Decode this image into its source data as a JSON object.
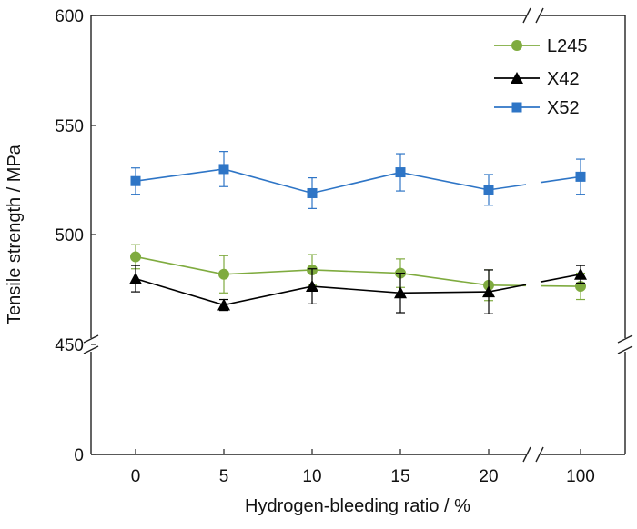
{
  "chart_data": {
    "type": "line",
    "xlabel": "Hydrogen-bleeding ratio / %",
    "ylabel": "Tensile strength / MPa",
    "categories": [
      "0",
      "5",
      "10",
      "15",
      "20",
      "100"
    ],
    "y_ticks": [
      "0",
      "450",
      "500",
      "550",
      "600"
    ],
    "y_axis_break": [
      0,
      450
    ],
    "x_axis_break": [
      20,
      100
    ],
    "ylim": [
      450,
      600
    ],
    "grid": false,
    "legend_position": "top-right",
    "series": [
      {
        "name": "L245",
        "color": "#7fab3f",
        "marker": "circle",
        "values": [
          490,
          482,
          484,
          482.5,
          477,
          476.5
        ],
        "errors": [
          5.5,
          8.5,
          7.0,
          6.5,
          7.0,
          6.0
        ]
      },
      {
        "name": "X42",
        "color": "#000000",
        "marker": "triangle",
        "values": [
          480,
          468,
          476.5,
          473.5,
          474,
          482
        ],
        "errors": [
          6.0,
          2.5,
          8.0,
          9.0,
          10.0,
          4.0
        ]
      },
      {
        "name": "X52",
        "color": "#2e75c6",
        "marker": "square",
        "values": [
          524.5,
          530,
          519,
          528.5,
          520.5,
          526.5
        ],
        "errors": [
          6.0,
          8.0,
          7.0,
          8.5,
          7.0,
          8.0
        ]
      }
    ]
  }
}
